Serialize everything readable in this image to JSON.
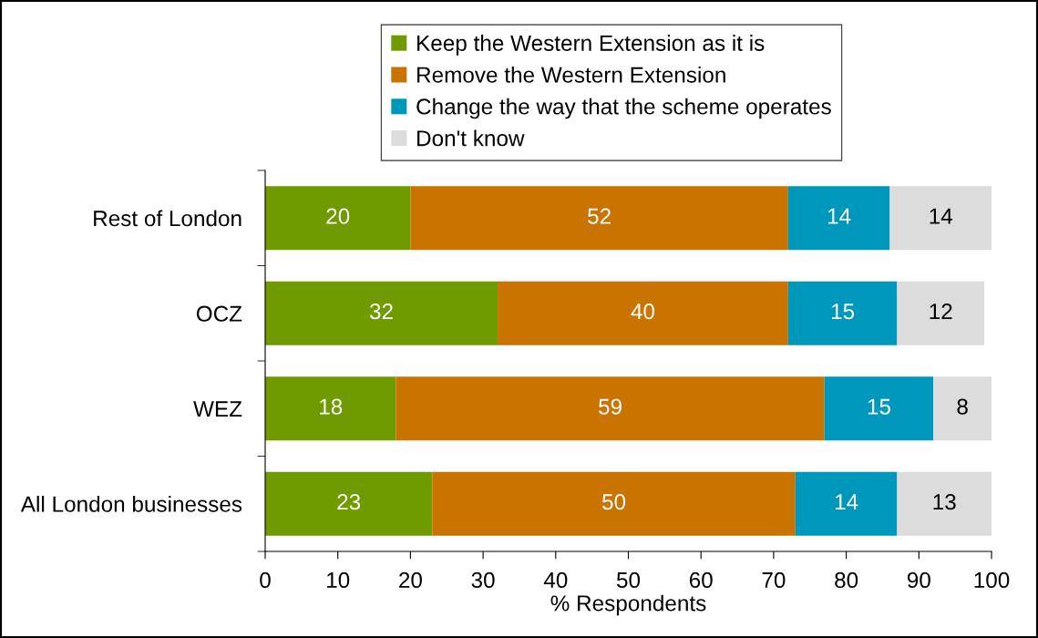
{
  "chart_data": {
    "type": "bar",
    "orientation": "horizontal",
    "stacked": true,
    "categories": [
      "Rest of London",
      "OCZ",
      "WEZ",
      "All London businesses"
    ],
    "series": [
      {
        "name": "Keep the Western Extension as it is",
        "color": "#6f9a00",
        "values": [
          20,
          32,
          18,
          23
        ]
      },
      {
        "name": "Remove the Western Extension",
        "color": "#c97300",
        "values": [
          52,
          40,
          59,
          50
        ]
      },
      {
        "name": "Change the way that the scheme operates",
        "color": "#0097bd",
        "values": [
          14,
          15,
          15,
          14
        ]
      },
      {
        "name": "Don't know",
        "color": "#dcdcdc",
        "values": [
          14,
          12,
          8,
          13
        ]
      }
    ],
    "xlabel": "% Respondents",
    "xlim": [
      0,
      100
    ],
    "xticks": [
      0,
      10,
      20,
      30,
      40,
      50,
      60,
      70,
      80,
      90,
      100
    ],
    "data_labels": true,
    "legend": "top",
    "grid": false
  }
}
